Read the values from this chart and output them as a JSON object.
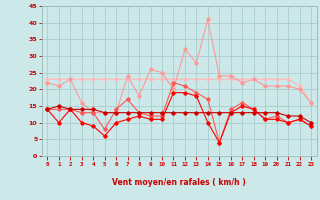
{
  "x": [
    0,
    1,
    2,
    3,
    4,
    5,
    6,
    7,
    8,
    9,
    10,
    11,
    12,
    13,
    14,
    15,
    16,
    17,
    18,
    19,
    20,
    21,
    22,
    23
  ],
  "line1": [
    14,
    15,
    14,
    14,
    14,
    13,
    13,
    13,
    13,
    13,
    13,
    13,
    13,
    13,
    13,
    13,
    13,
    13,
    13,
    13,
    13,
    12,
    12,
    10
  ],
  "line2": [
    14,
    10,
    14,
    10,
    9,
    6,
    10,
    11,
    12,
    11,
    11,
    19,
    19,
    18,
    10,
    4,
    13,
    15,
    14,
    11,
    11,
    10,
    11,
    9
  ],
  "line3": [
    14,
    14,
    14,
    13,
    13,
    8,
    14,
    17,
    13,
    12,
    12,
    22,
    21,
    19,
    17,
    4,
    14,
    16,
    14,
    11,
    12,
    10,
    11,
    9
  ],
  "line4": [
    23,
    23,
    23,
    23,
    23,
    23,
    23,
    23,
    23,
    23,
    23,
    23,
    23,
    23,
    23,
    23,
    23,
    23,
    23,
    23,
    23,
    23,
    21,
    16
  ],
  "line5": [
    22,
    21,
    23,
    16,
    13,
    13,
    13,
    24,
    18,
    26,
    25,
    20,
    32,
    28,
    41,
    24,
    24,
    22,
    23,
    21,
    21,
    21,
    20,
    16
  ],
  "bg_color": "#cce8e8",
  "grid_color": "#aacccc",
  "line1_color": "#cc0000",
  "line2_color": "#ff0000",
  "line3_color": "#ff5555",
  "line4_color": "#ffbbbb",
  "line5_color": "#ff9999",
  "tick_color": "#cc0000",
  "xlabel": "Vent moyen/en rafales ( km/h )",
  "xlim": [
    -0.5,
    23.5
  ],
  "ylim": [
    0,
    45
  ],
  "yticks": [
    0,
    5,
    10,
    15,
    20,
    25,
    30,
    35,
    40,
    45
  ]
}
